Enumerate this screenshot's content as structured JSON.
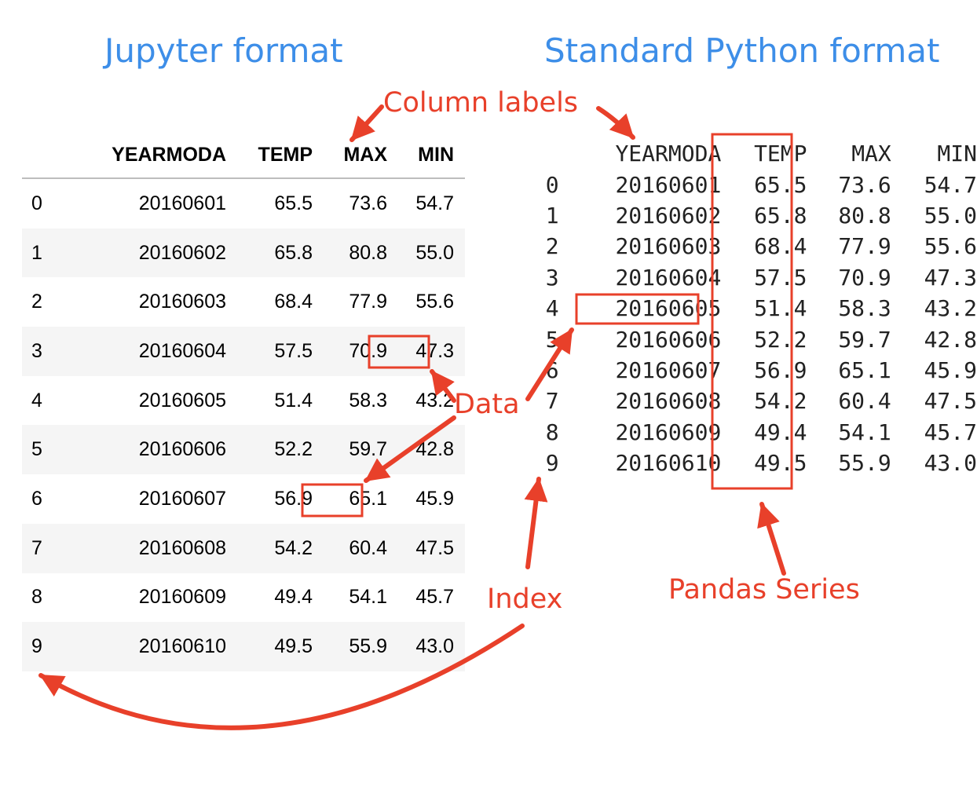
{
  "titles": {
    "jupyter": "Jupyter format",
    "standard": "Standard Python format"
  },
  "annotations": {
    "column_labels": "Column labels",
    "data": "Data",
    "index": "Index",
    "pandas_series": "Pandas Series"
  },
  "colors": {
    "title_blue": "#3d8ee8",
    "annotation_red": "#e8402a"
  },
  "table": {
    "columns": [
      "YEARMODA",
      "TEMP",
      "MAX",
      "MIN"
    ],
    "rows": [
      {
        "index": "0",
        "yearmoda": "20160601",
        "temp": "65.5",
        "max": "73.6",
        "min": "54.7"
      },
      {
        "index": "1",
        "yearmoda": "20160602",
        "temp": "65.8",
        "max": "80.8",
        "min": "55.0"
      },
      {
        "index": "2",
        "yearmoda": "20160603",
        "temp": "68.4",
        "max": "77.9",
        "min": "55.6"
      },
      {
        "index": "3",
        "yearmoda": "20160604",
        "temp": "57.5",
        "max": "70.9",
        "min": "47.3"
      },
      {
        "index": "4",
        "yearmoda": "20160605",
        "temp": "51.4",
        "max": "58.3",
        "min": "43.2"
      },
      {
        "index": "5",
        "yearmoda": "20160606",
        "temp": "52.2",
        "max": "59.7",
        "min": "42.8"
      },
      {
        "index": "6",
        "yearmoda": "20160607",
        "temp": "56.9",
        "max": "65.1",
        "min": "45.9"
      },
      {
        "index": "7",
        "yearmoda": "20160608",
        "temp": "54.2",
        "max": "60.4",
        "min": "47.5"
      },
      {
        "index": "8",
        "yearmoda": "20160609",
        "temp": "49.4",
        "max": "54.1",
        "min": "45.7"
      },
      {
        "index": "9",
        "yearmoda": "20160610",
        "temp": "49.5",
        "max": "55.9",
        "min": "43.0"
      }
    ]
  }
}
